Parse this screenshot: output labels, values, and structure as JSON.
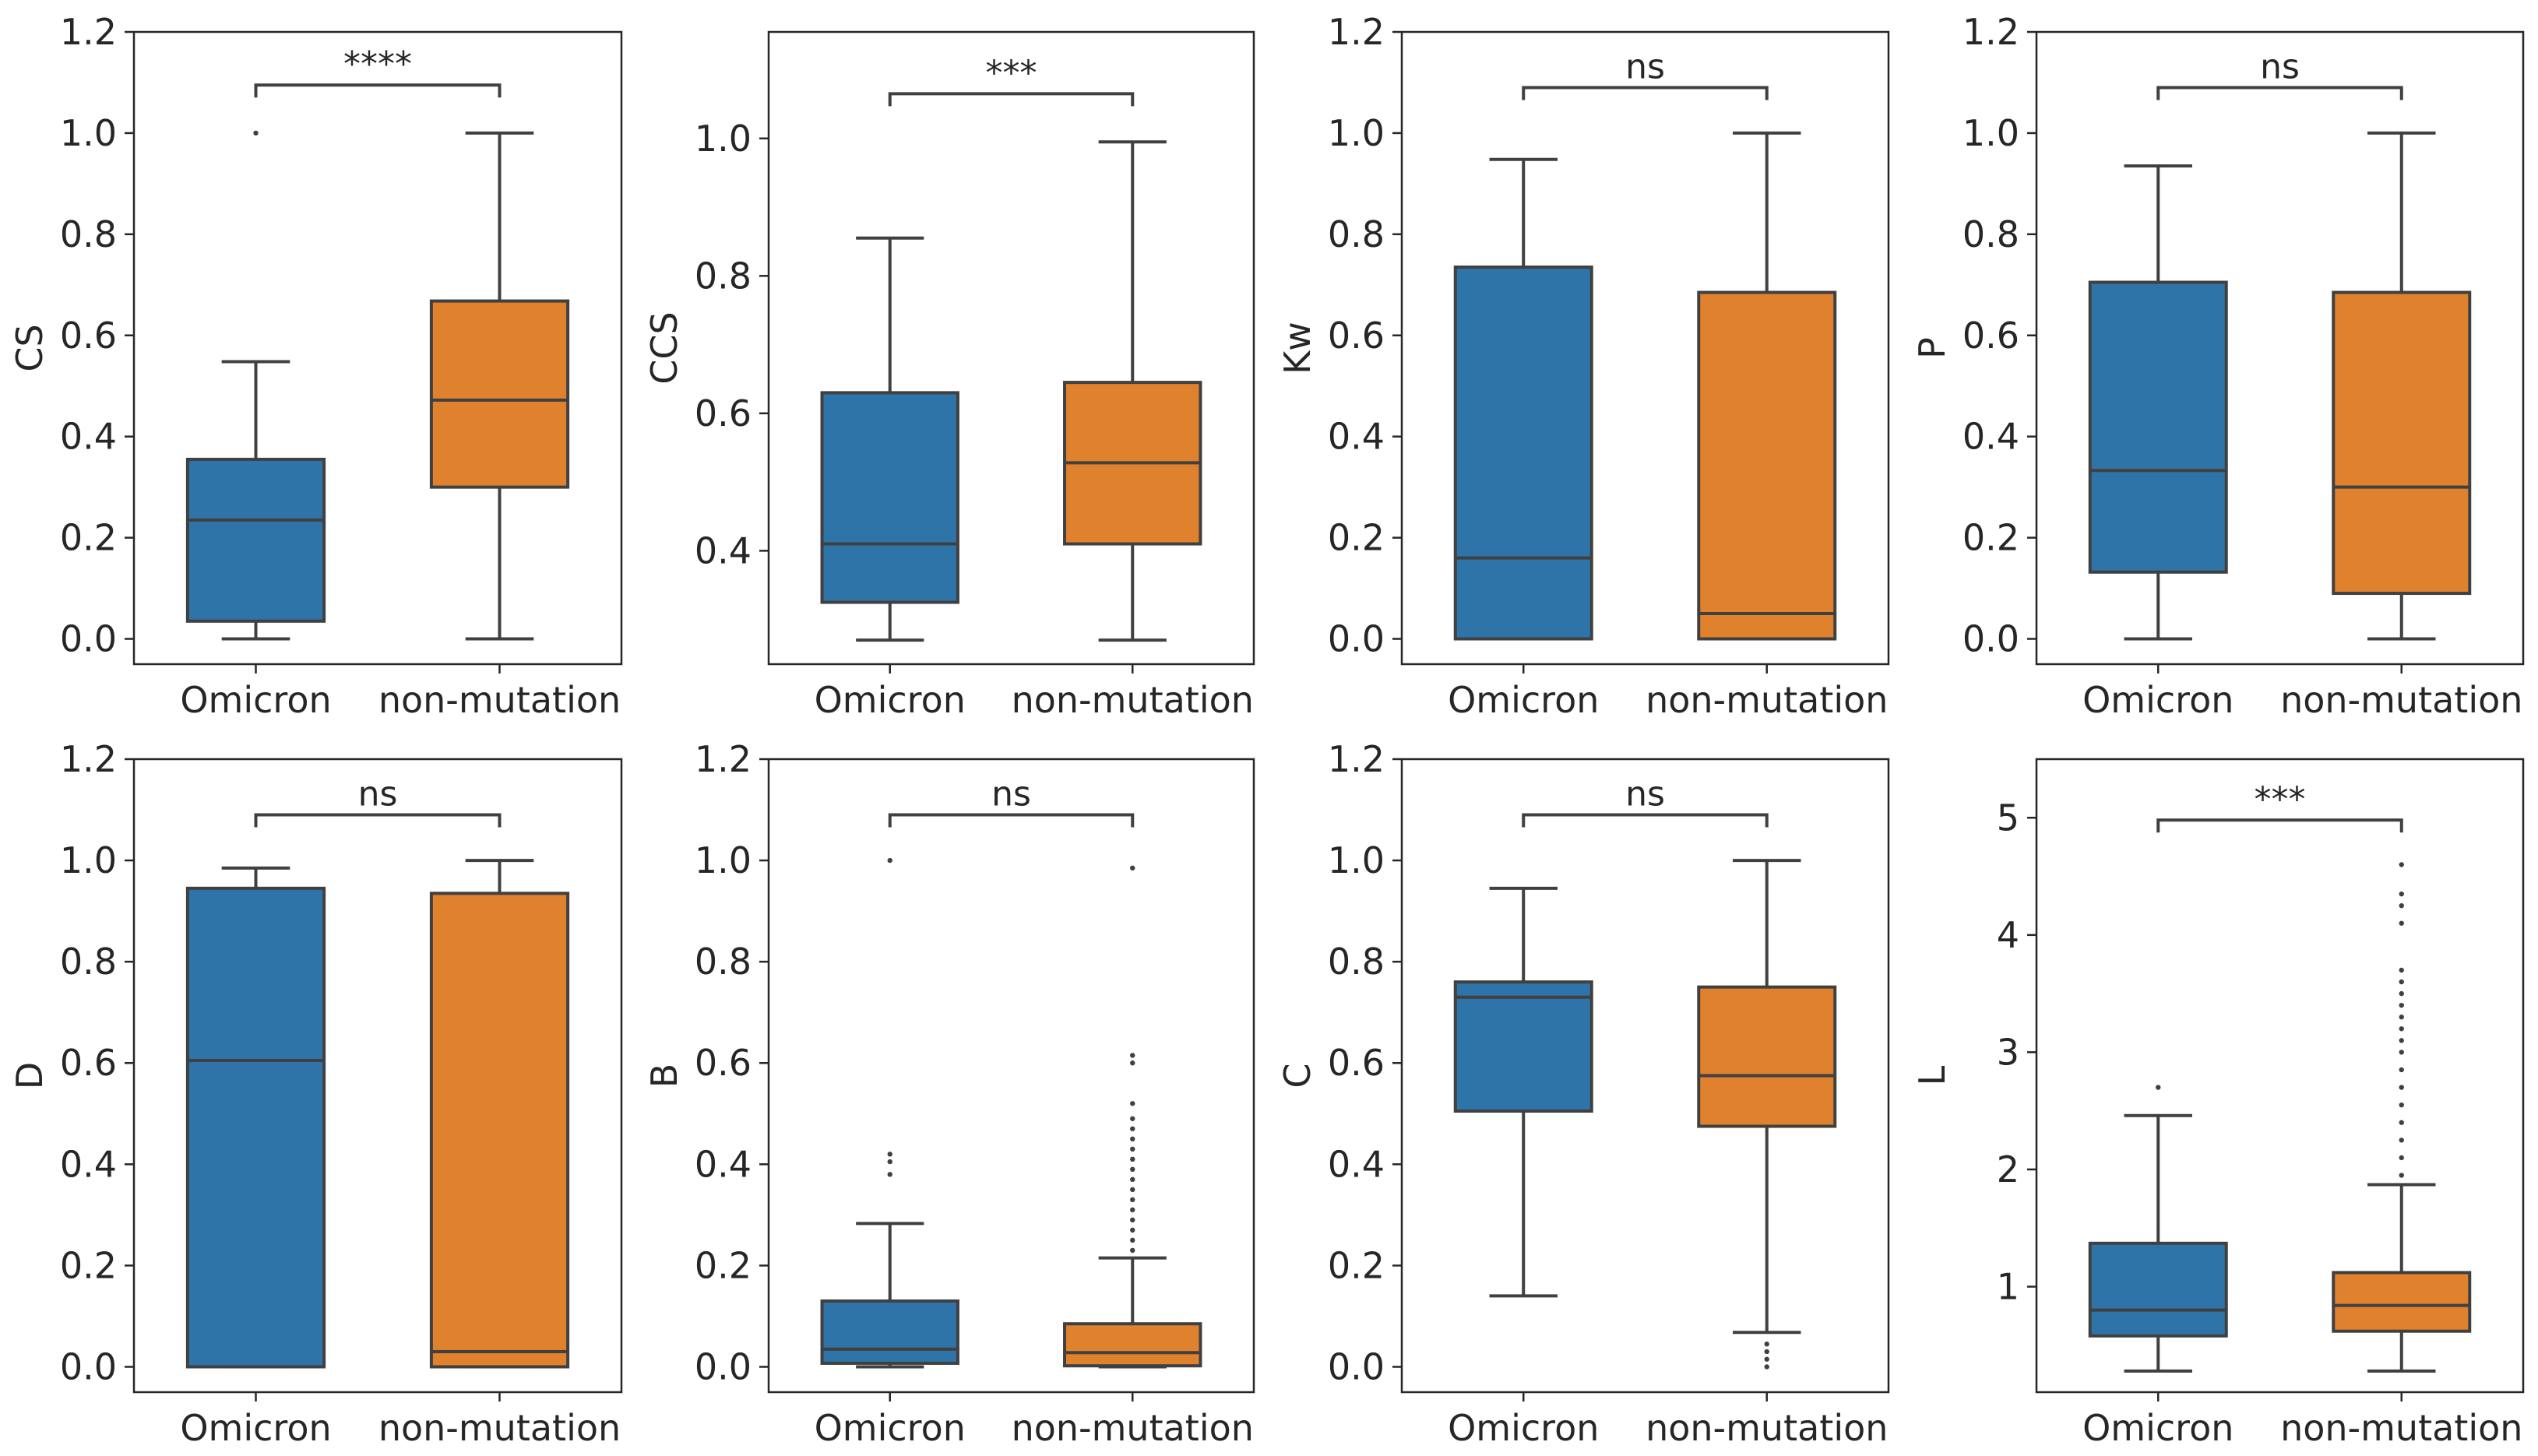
{
  "colors": {
    "omicron": "#2f74a8",
    "non_mutation": "#e0812e",
    "line": "#404040",
    "frame": "#262626"
  },
  "chart_data": [
    {
      "type": "box",
      "ylabel": "CS",
      "ylim": [
        -0.05,
        1.2
      ],
      "yticks": [
        "0.0",
        "0.2",
        "0.4",
        "0.6",
        "0.8",
        "1.0",
        "1.2"
      ],
      "ytick_values": [
        0,
        0.2,
        0.4,
        0.6,
        0.8,
        1.0,
        1.2
      ],
      "categories": [
        "Omicron",
        "non-mutation"
      ],
      "significance": "****",
      "bracket_y": 1.095,
      "boxes": [
        {
          "name": "Omicron",
          "whislo": 0.0,
          "q1": 0.035,
          "med": 0.235,
          "q3": 0.355,
          "whishi": 0.548,
          "fliers": [
            1.0
          ]
        },
        {
          "name": "non-mutation",
          "whislo": 0.0,
          "q1": 0.3,
          "med": 0.472,
          "q3": 0.668,
          "whishi": 1.0,
          "fliers": []
        }
      ]
    },
    {
      "type": "box",
      "ylabel": "CCS",
      "ylim": [
        0.235,
        1.155
      ],
      "yticks": [
        "0.4",
        "0.6",
        "0.8",
        "1.0"
      ],
      "ytick_values": [
        0.4,
        0.6,
        0.8,
        1.0
      ],
      "categories": [
        "Omicron",
        "non-mutation"
      ],
      "significance": "***",
      "bracket_y": 1.065,
      "boxes": [
        {
          "name": "Omicron",
          "whislo": 0.27,
          "q1": 0.325,
          "med": 0.41,
          "q3": 0.63,
          "whishi": 0.855,
          "fliers": []
        },
        {
          "name": "non-mutation",
          "whislo": 0.27,
          "q1": 0.41,
          "med": 0.528,
          "q3": 0.645,
          "whishi": 0.995,
          "fliers": []
        }
      ]
    },
    {
      "type": "box",
      "ylabel": "Kw",
      "ylim": [
        -0.05,
        1.2
      ],
      "yticks": [
        "0.0",
        "0.2",
        "0.4",
        "0.6",
        "0.8",
        "1.0",
        "1.2"
      ],
      "ytick_values": [
        0,
        0.2,
        0.4,
        0.6,
        0.8,
        1.0,
        1.2
      ],
      "categories": [
        "Omicron",
        "non-mutation"
      ],
      "significance": "ns",
      "bracket_y": 1.09,
      "boxes": [
        {
          "name": "Omicron",
          "whislo": 0.0,
          "q1": 0.0,
          "med": 0.16,
          "q3": 0.735,
          "whishi": 0.948,
          "fliers": []
        },
        {
          "name": "non-mutation",
          "whislo": 0.0,
          "q1": 0.0,
          "med": 0.05,
          "q3": 0.685,
          "whishi": 1.0,
          "fliers": []
        }
      ]
    },
    {
      "type": "box",
      "ylabel": "P",
      "ylim": [
        -0.05,
        1.2
      ],
      "yticks": [
        "0.0",
        "0.2",
        "0.4",
        "0.6",
        "0.8",
        "1.0",
        "1.2"
      ],
      "ytick_values": [
        0,
        0.2,
        0.4,
        0.6,
        0.8,
        1.0,
        1.2
      ],
      "categories": [
        "Omicron",
        "non-mutation"
      ],
      "significance": "ns",
      "bracket_y": 1.09,
      "boxes": [
        {
          "name": "Omicron",
          "whislo": 0.0,
          "q1": 0.132,
          "med": 0.333,
          "q3": 0.705,
          "whishi": 0.935,
          "fliers": []
        },
        {
          "name": "non-mutation",
          "whislo": 0.0,
          "q1": 0.09,
          "med": 0.3,
          "q3": 0.685,
          "whishi": 1.0,
          "fliers": []
        }
      ]
    },
    {
      "type": "box",
      "ylabel": "D",
      "ylim": [
        -0.05,
        1.2
      ],
      "yticks": [
        "0.0",
        "0.2",
        "0.4",
        "0.6",
        "0.8",
        "1.0",
        "1.2"
      ],
      "ytick_values": [
        0,
        0.2,
        0.4,
        0.6,
        0.8,
        1.0,
        1.2
      ],
      "categories": [
        "Omicron",
        "non-mutation"
      ],
      "significance": "ns",
      "bracket_y": 1.09,
      "boxes": [
        {
          "name": "Omicron",
          "whislo": 0.0,
          "q1": 0.0,
          "med": 0.605,
          "q3": 0.945,
          "whishi": 0.985,
          "fliers": []
        },
        {
          "name": "non-mutation",
          "whislo": 0.0,
          "q1": 0.0,
          "med": 0.03,
          "q3": 0.935,
          "whishi": 1.0,
          "fliers": []
        }
      ]
    },
    {
      "type": "box",
      "ylabel": "B",
      "ylim": [
        -0.05,
        1.2
      ],
      "yticks": [
        "0.0",
        "0.2",
        "0.4",
        "0.6",
        "0.8",
        "1.0",
        "1.2"
      ],
      "ytick_values": [
        0,
        0.2,
        0.4,
        0.6,
        0.8,
        1.0,
        1.2
      ],
      "categories": [
        "Omicron",
        "non-mutation"
      ],
      "significance": "ns",
      "bracket_y": 1.09,
      "boxes": [
        {
          "name": "Omicron",
          "whislo": 0.0,
          "q1": 0.007,
          "med": 0.035,
          "q3": 0.13,
          "whishi": 0.283,
          "fliers": [
            0.38,
            0.405,
            0.42,
            1.0
          ]
        },
        {
          "name": "non-mutation",
          "whislo": 0.0,
          "q1": 0.002,
          "med": 0.028,
          "q3": 0.085,
          "whishi": 0.215,
          "fliers": [
            0.23,
            0.25,
            0.27,
            0.29,
            0.31,
            0.33,
            0.35,
            0.37,
            0.39,
            0.41,
            0.43,
            0.45,
            0.47,
            0.49,
            0.52,
            0.6,
            0.615,
            0.985
          ]
        }
      ]
    },
    {
      "type": "box",
      "ylabel": "C",
      "ylim": [
        -0.05,
        1.2
      ],
      "yticks": [
        "0.0",
        "0.2",
        "0.4",
        "0.6",
        "0.8",
        "1.0",
        "1.2"
      ],
      "ytick_values": [
        0,
        0.2,
        0.4,
        0.6,
        0.8,
        1.0,
        1.2
      ],
      "categories": [
        "Omicron",
        "non-mutation"
      ],
      "significance": "ns",
      "bracket_y": 1.09,
      "boxes": [
        {
          "name": "Omicron",
          "whislo": 0.14,
          "q1": 0.505,
          "med": 0.73,
          "q3": 0.76,
          "whishi": 0.945,
          "fliers": []
        },
        {
          "name": "non-mutation",
          "whislo": 0.068,
          "q1": 0.475,
          "med": 0.575,
          "q3": 0.75,
          "whishi": 1.0,
          "fliers": [
            0.0,
            0.015,
            0.03,
            0.045
          ]
        }
      ]
    },
    {
      "type": "box",
      "ylabel": "L",
      "ylim": [
        0.1,
        5.5
      ],
      "yticks": [
        "1",
        "2",
        "3",
        "4",
        "5"
      ],
      "ytick_values": [
        1,
        2,
        3,
        4,
        5
      ],
      "categories": [
        "Omicron",
        "non-mutation"
      ],
      "significance": "***",
      "bracket_y": 4.98,
      "boxes": [
        {
          "name": "Omicron",
          "whislo": 0.28,
          "q1": 0.58,
          "med": 0.8,
          "q3": 1.37,
          "whishi": 2.46,
          "fliers": [
            2.7
          ]
        },
        {
          "name": "non-mutation",
          "whislo": 0.28,
          "q1": 0.62,
          "med": 0.84,
          "q3": 1.12,
          "whishi": 1.87,
          "fliers": [
            1.95,
            2.1,
            2.25,
            2.4,
            2.55,
            2.7,
            2.85,
            3.0,
            3.1,
            3.2,
            3.3,
            3.4,
            3.5,
            3.6,
            3.7,
            4.1,
            4.25,
            4.35,
            4.6
          ]
        }
      ]
    }
  ]
}
